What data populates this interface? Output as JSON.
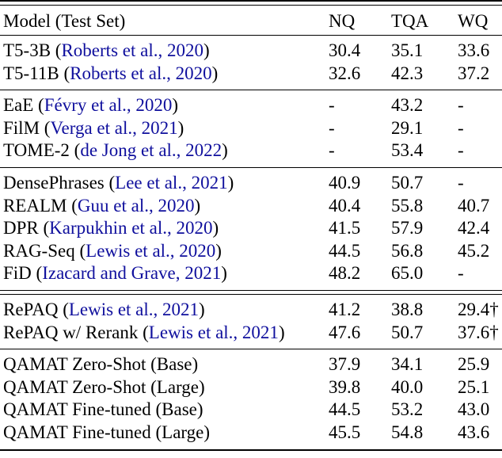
{
  "header": {
    "model_label": "Model (Test Set)",
    "columns": [
      "NQ",
      "TQA",
      "WQ"
    ]
  },
  "groups": [
    [
      {
        "pre": "T5-3B (",
        "cite": "Roberts et al., 2020",
        "post": ")",
        "nq": "30.4",
        "tqa": "35.1",
        "wq": "33.6"
      },
      {
        "pre": "T5-11B (",
        "cite": "Roberts et al., 2020",
        "post": ")",
        "nq": "32.6",
        "tqa": "42.3",
        "wq": "37.2"
      }
    ],
    [
      {
        "pre": "EaE (",
        "cite": "Févry et al., 2020",
        "post": ")",
        "nq": "-",
        "tqa": "43.2",
        "wq": "-"
      },
      {
        "pre": "FilM (",
        "cite": "Verga et al., 2021",
        "post": ")",
        "nq": "-",
        "tqa": "29.1",
        "wq": "-"
      },
      {
        "pre": "TOME-2 (",
        "cite": "de Jong et al., 2022",
        "post": ")",
        "nq": "-",
        "tqa": "53.4",
        "wq": "-"
      }
    ],
    [
      {
        "pre": "DensePhrases (",
        "cite": "Lee et al., 2021",
        "post": ")",
        "nq": "40.9",
        "tqa": "50.7",
        "wq": "-"
      },
      {
        "pre": "REALM (",
        "cite": "Guu et al., 2020",
        "post": ")",
        "nq": "40.4",
        "tqa": "55.8",
        "wq": "40.7"
      },
      {
        "pre": "DPR (",
        "cite": "Karpukhin et al., 2020",
        "post": ")",
        "nq": "41.5",
        "tqa": "57.9",
        "wq": "42.4"
      },
      {
        "pre": "RAG-Seq (",
        "cite": "Lewis et al., 2020",
        "post": ")",
        "nq": "44.5",
        "tqa": "56.8",
        "wq": "45.2"
      },
      {
        "pre": "FiD (",
        "cite": "Izacard and Grave, 2021",
        "post": ")",
        "nq": "48.2",
        "tqa": "65.0",
        "wq": "-"
      }
    ],
    [
      {
        "pre": "RePAQ (",
        "cite": "Lewis et al., 2021",
        "post": ")",
        "nq": "41.2",
        "tqa": "38.8",
        "wq": "29.4†"
      },
      {
        "pre": "RePAQ w/ Rerank (",
        "cite": "Lewis et al., 2021",
        "post": ")",
        "nq": "47.6",
        "tqa": "50.7",
        "wq": "37.6†"
      }
    ],
    [
      {
        "pre": "QAMAT Zero-Shot (Base)",
        "nq": "37.9",
        "tqa": "34.1",
        "wq": "25.9"
      },
      {
        "pre": "QAMAT Zero-Shot (Large)",
        "nq": "39.8",
        "tqa": "40.0",
        "wq": "25.1"
      },
      {
        "pre": "QAMAT Fine-tuned (Base)",
        "nq": "44.5",
        "tqa": "53.2",
        "wq": "43.0"
      },
      {
        "pre": "QAMAT Fine-tuned (Large)",
        "nq": "45.5",
        "tqa": "54.8",
        "wq": "43.6"
      }
    ]
  ],
  "colors": {
    "citation_link": "#0f0f9d",
    "text": "#000000",
    "rule": "#000000"
  }
}
